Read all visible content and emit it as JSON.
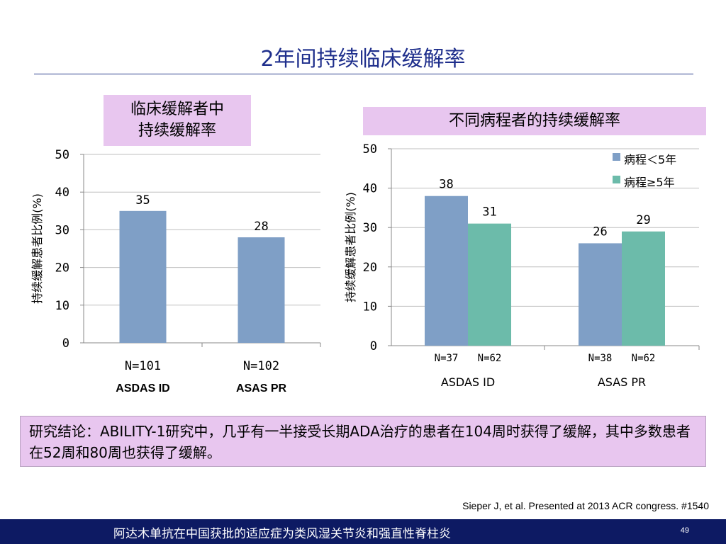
{
  "title": "2年间持续临床缓解率",
  "left_box": {
    "line1": "临床缓解者中",
    "line2": "持续缓解率"
  },
  "right_box": "不同病程者的持续缓解率",
  "conclusion": "研究结论：ABILITY-1研究中，几乎有一半接受长期ADA治疗的患者在104周时获得了缓解，其中多数患者在52周和80周也获得了缓解。",
  "citation": "Sieper J, et al. Presented at 2013 ACR congress. #1540",
  "footer": {
    "text": "阿达木单抗在中国获批的适应症为类风湿关节炎和强直性脊柱炎",
    "page": "49"
  },
  "colors": {
    "title": "#1f2f8c",
    "bar_blue": "#7f9fc6",
    "bar_teal": "#6cbbaa",
    "box_pink": "#e8c6ef",
    "footer": "#0d1a63"
  },
  "chart_data": [
    {
      "type": "bar",
      "ylabel": "持续缓解患者比例(%)",
      "ylim": [
        0,
        50
      ],
      "yticks": [
        "0",
        "10",
        "20",
        "30",
        "40",
        "50"
      ],
      "categories": [
        "ASDAS ID",
        "ASAS PR"
      ],
      "n_labels": [
        "N=101",
        "N=102"
      ],
      "series": [
        {
          "values": [
            35,
            28
          ]
        }
      ],
      "grid": true,
      "legend": "none"
    },
    {
      "type": "bar",
      "ylabel": "持续缓解患者比例(%)",
      "ylim": [
        0,
        50
      ],
      "yticks": [
        "0",
        "10",
        "20",
        "30",
        "40",
        "50"
      ],
      "categories": [
        "ASDAS ID",
        "ASAS PR"
      ],
      "series": [
        {
          "name": "病程＜5年",
          "values": [
            38,
            26
          ],
          "n_labels": [
            "N=37",
            "N=38"
          ]
        },
        {
          "name": "病程≥5年",
          "values": [
            31,
            29
          ],
          "n_labels": [
            "N=62",
            "N=62"
          ]
        }
      ],
      "grid": true,
      "legend": "top-right"
    }
  ]
}
